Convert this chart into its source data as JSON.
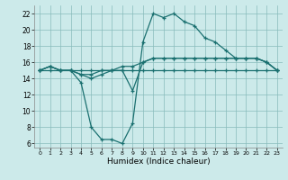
{
  "xlabel": "Humidex (Indice chaleur)",
  "background_color": "#cceaea",
  "grid_color": "#88bbbb",
  "line_color": "#1a7070",
  "xlim": [
    -0.5,
    23.5
  ],
  "ylim": [
    5.5,
    23
  ],
  "yticks": [
    6,
    8,
    10,
    12,
    14,
    16,
    18,
    20,
    22
  ],
  "xticks": [
    0,
    1,
    2,
    3,
    4,
    5,
    6,
    7,
    8,
    9,
    10,
    11,
    12,
    13,
    14,
    15,
    16,
    17,
    18,
    19,
    20,
    21,
    22,
    23
  ],
  "series": [
    {
      "x": [
        0,
        1,
        2,
        3,
        4,
        5,
        6,
        7,
        8,
        9,
        10,
        11,
        12,
        13,
        14,
        15,
        16,
        17,
        18,
        19,
        20,
        21,
        22,
        23
      ],
      "y": [
        15,
        15.5,
        15,
        15,
        13.5,
        8,
        6.5,
        6.5,
        6,
        8.5,
        18.5,
        22,
        21.5,
        22,
        21,
        20.5,
        19,
        18.5,
        17.5,
        16.5,
        16.5,
        16.5,
        16,
        15
      ]
    },
    {
      "x": [
        0,
        1,
        2,
        3,
        4,
        5,
        6,
        7,
        8,
        9,
        10,
        11,
        12,
        13,
        14,
        15,
        16,
        17,
        18,
        19,
        20,
        21,
        22,
        23
      ],
      "y": [
        15,
        15.5,
        15,
        15,
        14.5,
        14,
        14.5,
        15,
        15,
        12.5,
        16,
        16.5,
        16.5,
        16.5,
        16.5,
        16.5,
        16.5,
        16.5,
        16.5,
        16.5,
        16.5,
        16.5,
        16,
        15
      ]
    },
    {
      "x": [
        0,
        1,
        2,
        3,
        4,
        5,
        6,
        7,
        8,
        9,
        10,
        11,
        12,
        13,
        14,
        15,
        16,
        17,
        18,
        19,
        20,
        21,
        22,
        23
      ],
      "y": [
        15,
        15.5,
        15,
        15,
        14.5,
        14.5,
        15,
        15,
        15.5,
        15.5,
        16,
        16.5,
        16.5,
        16.5,
        16.5,
        16.5,
        16.5,
        16.5,
        16.5,
        16.5,
        16.5,
        16.5,
        16,
        15
      ]
    },
    {
      "x": [
        0,
        1,
        2,
        3,
        4,
        5,
        6,
        7,
        8,
        9,
        10,
        11,
        12,
        13,
        14,
        15,
        16,
        17,
        18,
        19,
        20,
        21,
        22,
        23
      ],
      "y": [
        15,
        15,
        15,
        15,
        15,
        15,
        15,
        15,
        15,
        15,
        15,
        15,
        15,
        15,
        15,
        15,
        15,
        15,
        15,
        15,
        15,
        15,
        15,
        15
      ]
    }
  ]
}
